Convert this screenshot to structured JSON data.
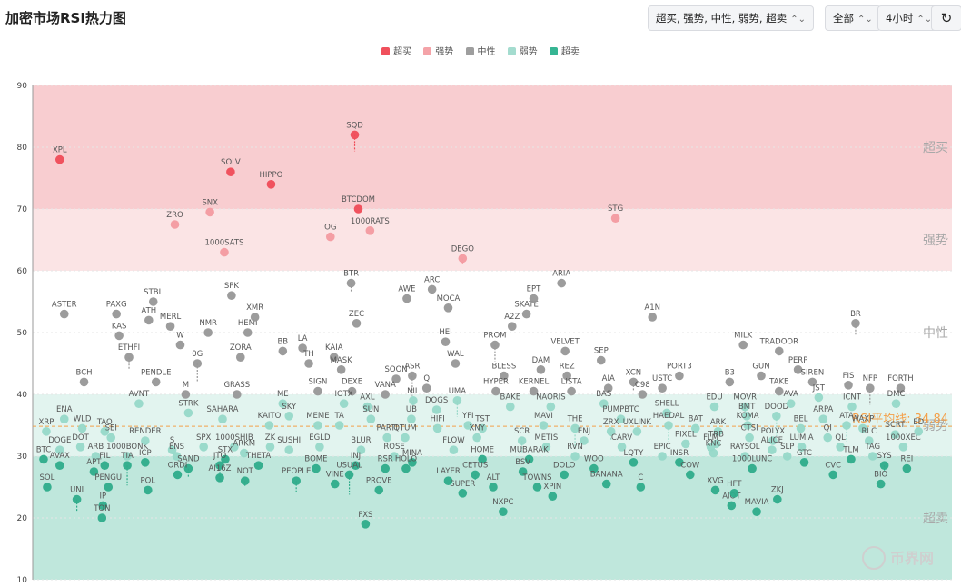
{
  "header": {
    "title": "加密市场RSI热力图",
    "filter_label": "超买, 强势, 中性, 弱势, 超卖",
    "scope_label": "全部",
    "interval_label": "4小时",
    "chevron_glyph": "⌃⌄",
    "refresh_glyph": "↻"
  },
  "legend": [
    {
      "label": "超买",
      "color": "#f0505c"
    },
    {
      "label": "强势",
      "color": "#f4a3a8"
    },
    {
      "label": "中性",
      "color": "#9e9e9e"
    },
    {
      "label": "弱势",
      "color": "#a4dccf"
    },
    {
      "label": "超卖",
      "color": "#36b593"
    }
  ],
  "chart_data": {
    "type": "scatter",
    "ylim": [
      10,
      90
    ],
    "yticks": [
      10,
      20,
      30,
      40,
      50,
      60,
      70,
      80,
      90
    ],
    "zones": [
      {
        "label": "超买",
        "from": 70,
        "to": 90,
        "color": "#f8cdd0"
      },
      {
        "label": "强势",
        "from": 60,
        "to": 70,
        "color": "#fbe4e5"
      },
      {
        "label": "中性",
        "from": 40,
        "to": 60,
        "color": "#ffffff"
      },
      {
        "label": "弱势",
        "from": 30,
        "to": 40,
        "color": "#e2f4ef"
      },
      {
        "label": "超卖",
        "from": 10,
        "to": 30,
        "color": "#bfe7dc"
      }
    ],
    "average": {
      "label": "RSI平均线: 34.84",
      "value": 34.84,
      "color": "#f4a04a"
    },
    "points": [
      {
        "n": "XPL",
        "x": 0.02,
        "y": 78
      },
      {
        "n": "SOLV",
        "x": 0.21,
        "y": 76
      },
      {
        "n": "HIPPO",
        "x": 0.255,
        "y": 74
      },
      {
        "n": "SQD",
        "x": 0.348,
        "y": 82
      },
      {
        "n": "BTCDOM",
        "x": 0.352,
        "y": 70
      },
      {
        "n": "1000RATS",
        "x": 0.365,
        "y": 66.5
      },
      {
        "n": "ZRO",
        "x": 0.148,
        "y": 67.5
      },
      {
        "n": "SNX",
        "x": 0.187,
        "y": 69.5
      },
      {
        "n": "1000SATS",
        "x": 0.203,
        "y": 63
      },
      {
        "n": "OG",
        "x": 0.321,
        "y": 65.5
      },
      {
        "n": "DEGO",
        "x": 0.468,
        "y": 62
      },
      {
        "n": "STG",
        "x": 0.638,
        "y": 68.5
      },
      {
        "n": "ASTER",
        "x": 0.025,
        "y": 53
      },
      {
        "n": "PAXG",
        "x": 0.083,
        "y": 53
      },
      {
        "n": "STBL",
        "x": 0.124,
        "y": 55
      },
      {
        "n": "ATH",
        "x": 0.119,
        "y": 52
      },
      {
        "n": "KAS",
        "x": 0.086,
        "y": 49.5
      },
      {
        "n": "ETHFI",
        "x": 0.097,
        "y": 46
      },
      {
        "n": "MERL",
        "x": 0.143,
        "y": 51
      },
      {
        "n": "NMR",
        "x": 0.185,
        "y": 50
      },
      {
        "n": "HEMI",
        "x": 0.229,
        "y": 50
      },
      {
        "n": "XMR",
        "x": 0.237,
        "y": 52.5
      },
      {
        "n": "SPK",
        "x": 0.211,
        "y": 56
      },
      {
        "n": "ZORA",
        "x": 0.221,
        "y": 46
      },
      {
        "n": "0G",
        "x": 0.173,
        "y": 45
      },
      {
        "n": "W",
        "x": 0.154,
        "y": 48
      },
      {
        "n": "BB",
        "x": 0.268,
        "y": 47
      },
      {
        "n": "LA",
        "x": 0.29,
        "y": 47.5
      },
      {
        "n": "TH",
        "x": 0.297,
        "y": 45
      },
      {
        "n": "KAIA",
        "x": 0.325,
        "y": 46
      },
      {
        "n": "MASK",
        "x": 0.333,
        "y": 44
      },
      {
        "n": "BTR",
        "x": 0.344,
        "y": 58
      },
      {
        "n": "ZEC",
        "x": 0.35,
        "y": 51.5
      },
      {
        "n": "AWE",
        "x": 0.406,
        "y": 55.5
      },
      {
        "n": "ARC",
        "x": 0.434,
        "y": 57
      },
      {
        "n": "MOCA",
        "x": 0.452,
        "y": 54
      },
      {
        "n": "HEI",
        "x": 0.449,
        "y": 48.5
      },
      {
        "n": "WAL",
        "x": 0.46,
        "y": 45
      },
      {
        "n": "PROM",
        "x": 0.504,
        "y": 48
      },
      {
        "n": "A2Z",
        "x": 0.523,
        "y": 51
      },
      {
        "n": "SKATE",
        "x": 0.539,
        "y": 53
      },
      {
        "n": "EPT",
        "x": 0.547,
        "y": 55.5
      },
      {
        "n": "ARIA",
        "x": 0.578,
        "y": 58
      },
      {
        "n": "VELVET",
        "x": 0.582,
        "y": 47
      },
      {
        "n": "DAM",
        "x": 0.555,
        "y": 44
      },
      {
        "n": "REZ",
        "x": 0.584,
        "y": 43
      },
      {
        "n": "SEP",
        "x": 0.622,
        "y": 45.5
      },
      {
        "n": "A1N",
        "x": 0.679,
        "y": 52.5
      },
      {
        "n": "PORT3",
        "x": 0.709,
        "y": 43
      },
      {
        "n": "MILK",
        "x": 0.78,
        "y": 48
      },
      {
        "n": "TRADOOR",
        "x": 0.82,
        "y": 47
      },
      {
        "n": "PERP",
        "x": 0.841,
        "y": 44
      },
      {
        "n": "BR",
        "x": 0.905,
        "y": 51.5
      },
      {
        "n": "BCH",
        "x": 0.047,
        "y": 42
      },
      {
        "n": "PENDLE",
        "x": 0.127,
        "y": 42
      },
      {
        "n": "GRASS",
        "x": 0.217,
        "y": 40
      },
      {
        "n": "SIGN",
        "x": 0.307,
        "y": 40.5
      },
      {
        "n": "DEXE",
        "x": 0.345,
        "y": 40.5
      },
      {
        "n": "SOON",
        "x": 0.394,
        "y": 42.5
      },
      {
        "n": "ASR",
        "x": 0.412,
        "y": 43
      },
      {
        "n": "Q",
        "x": 0.428,
        "y": 41
      },
      {
        "n": "BLESS",
        "x": 0.514,
        "y": 43
      },
      {
        "n": "HYPER",
        "x": 0.505,
        "y": 40.5
      },
      {
        "n": "KERNEL",
        "x": 0.547,
        "y": 40.5
      },
      {
        "n": "LISTA",
        "x": 0.589,
        "y": 40.5
      },
      {
        "n": "AIA",
        "x": 0.63,
        "y": 41
      },
      {
        "n": "XCN",
        "x": 0.658,
        "y": 42
      },
      {
        "n": "USTC",
        "x": 0.69,
        "y": 41
      },
      {
        "n": "B3",
        "x": 0.765,
        "y": 42
      },
      {
        "n": "GUN",
        "x": 0.8,
        "y": 43
      },
      {
        "n": "TAKE",
        "x": 0.82,
        "y": 40.5
      },
      {
        "n": "SIREN",
        "x": 0.857,
        "y": 42
      },
      {
        "n": "FIS",
        "x": 0.897,
        "y": 41.5
      },
      {
        "n": "NFP",
        "x": 0.921,
        "y": 41
      },
      {
        "n": "FORTH",
        "x": 0.955,
        "y": 41
      },
      {
        "n": "M",
        "x": 0.16,
        "y": 40
      },
      {
        "n": "ENA",
        "x": 0.025,
        "y": 36
      },
      {
        "n": "XRP",
        "x": 0.005,
        "y": 34
      },
      {
        "n": "WLD",
        "x": 0.045,
        "y": 34.5
      },
      {
        "n": "TAO",
        "x": 0.07,
        "y": 34
      },
      {
        "n": "DOGE",
        "x": 0.02,
        "y": 31
      },
      {
        "n": "DOT",
        "x": 0.043,
        "y": 31.5
      },
      {
        "n": "SEI",
        "x": 0.077,
        "y": 33
      },
      {
        "n": "ARB",
        "x": 0.06,
        "y": 30
      },
      {
        "n": "AVAX",
        "x": 0.02,
        "y": 28.5
      },
      {
        "n": "BTC",
        "x": 0.002,
        "y": 29.5
      },
      {
        "n": "SOL",
        "x": 0.006,
        "y": 25
      },
      {
        "n": "UNI",
        "x": 0.039,
        "y": 23
      },
      {
        "n": "FIL",
        "x": 0.07,
        "y": 28.5
      },
      {
        "n": "APT",
        "x": 0.058,
        "y": 27.5
      },
      {
        "n": "PENGU",
        "x": 0.074,
        "y": 25
      },
      {
        "n": "IP",
        "x": 0.068,
        "y": 22
      },
      {
        "n": "TON",
        "x": 0.067,
        "y": 20
      },
      {
        "n": "1000BONK",
        "x": 0.095,
        "y": 30
      },
      {
        "n": "TIA",
        "x": 0.095,
        "y": 28.5
      },
      {
        "n": "ICP",
        "x": 0.115,
        "y": 29
      },
      {
        "n": "POL",
        "x": 0.118,
        "y": 24.5
      },
      {
        "n": "RENDER",
        "x": 0.115,
        "y": 32.5
      },
      {
        "n": "AVNT",
        "x": 0.108,
        "y": 38.5
      },
      {
        "n": "S",
        "x": 0.145,
        "y": 31
      },
      {
        "n": "ENS",
        "x": 0.15,
        "y": 30
      },
      {
        "n": "SAND",
        "x": 0.163,
        "y": 28
      },
      {
        "n": "ORDI",
        "x": 0.151,
        "y": 27
      },
      {
        "n": "SPX",
        "x": 0.18,
        "y": 31.5
      },
      {
        "n": "STRK",
        "x": 0.163,
        "y": 37
      },
      {
        "n": "SAHARA",
        "x": 0.201,
        "y": 36
      },
      {
        "n": "1000SHIB",
        "x": 0.214,
        "y": 31.5
      },
      {
        "n": "STX",
        "x": 0.204,
        "y": 29.5
      },
      {
        "n": "JTO",
        "x": 0.198,
        "y": 28.5
      },
      {
        "n": "AI16Z",
        "x": 0.198,
        "y": 26.5
      },
      {
        "n": "KAITO",
        "x": 0.253,
        "y": 35
      },
      {
        "n": "ME",
        "x": 0.268,
        "y": 38.5
      },
      {
        "n": "ZK",
        "x": 0.254,
        "y": 31.5
      },
      {
        "n": "ARKM",
        "x": 0.225,
        "y": 30.5
      },
      {
        "n": "THETA",
        "x": 0.241,
        "y": 28.5
      },
      {
        "n": "NOT",
        "x": 0.226,
        "y": 26
      },
      {
        "n": "SKY",
        "x": 0.275,
        "y": 36.5
      },
      {
        "n": "SUSHI",
        "x": 0.275,
        "y": 31
      },
      {
        "n": "MEME",
        "x": 0.307,
        "y": 35
      },
      {
        "n": "EGLD",
        "x": 0.309,
        "y": 31.5
      },
      {
        "n": "TA",
        "x": 0.331,
        "y": 35
      },
      {
        "n": "BOME",
        "x": 0.305,
        "y": 28
      },
      {
        "n": "PEOPLE",
        "x": 0.283,
        "y": 26
      },
      {
        "n": "VINE",
        "x": 0.326,
        "y": 25.5
      },
      {
        "n": "IOTX",
        "x": 0.336,
        "y": 38.5
      },
      {
        "n": "AXL",
        "x": 0.362,
        "y": 38
      },
      {
        "n": "SUN",
        "x": 0.366,
        "y": 36
      },
      {
        "n": "BLUR",
        "x": 0.355,
        "y": 31
      },
      {
        "n": "INJ",
        "x": 0.349,
        "y": 28.5
      },
      {
        "n": "USUAL",
        "x": 0.342,
        "y": 27
      },
      {
        "n": "PARTI",
        "x": 0.384,
        "y": 33
      },
      {
        "n": "ROSE",
        "x": 0.392,
        "y": 30
      },
      {
        "n": "RSR",
        "x": 0.382,
        "y": 28
      },
      {
        "n": "PROVE",
        "x": 0.375,
        "y": 24.5
      },
      {
        "n": "FXS",
        "x": 0.36,
        "y": 19
      },
      {
        "n": "VANA",
        "x": 0.382,
        "y": 40
      },
      {
        "n": "NIL",
        "x": 0.413,
        "y": 39
      },
      {
        "n": "UB",
        "x": 0.411,
        "y": 36
      },
      {
        "n": "QTUM",
        "x": 0.404,
        "y": 33
      },
      {
        "n": "MINA",
        "x": 0.412,
        "y": 29
      },
      {
        "n": "HOLO",
        "x": 0.405,
        "y": 28
      },
      {
        "n": "DOGS",
        "x": 0.439,
        "y": 37.5
      },
      {
        "n": "HIFI",
        "x": 0.44,
        "y": 34.5
      },
      {
        "n": "UMA",
        "x": 0.462,
        "y": 39
      },
      {
        "n": "YFI",
        "x": 0.474,
        "y": 35
      },
      {
        "n": "TST",
        "x": 0.49,
        "y": 34.5
      },
      {
        "n": "XNY",
        "x": 0.484,
        "y": 33
      },
      {
        "n": "FLOW",
        "x": 0.458,
        "y": 31
      },
      {
        "n": "HOME",
        "x": 0.49,
        "y": 29.5
      },
      {
        "n": "LAYER",
        "x": 0.452,
        "y": 26
      },
      {
        "n": "CETUS",
        "x": 0.482,
        "y": 27
      },
      {
        "n": "SUPER",
        "x": 0.468,
        "y": 24
      },
      {
        "n": "ALT",
        "x": 0.502,
        "y": 25
      },
      {
        "n": "NXPC",
        "x": 0.513,
        "y": 21
      },
      {
        "n": "BAKE",
        "x": 0.521,
        "y": 38
      },
      {
        "n": "NAORIS",
        "x": 0.566,
        "y": 38
      },
      {
        "n": "MAVI",
        "x": 0.558,
        "y": 35
      },
      {
        "n": "SCR",
        "x": 0.534,
        "y": 32.5
      },
      {
        "n": "METIS",
        "x": 0.561,
        "y": 31.5
      },
      {
        "n": "MUBARAK",
        "x": 0.542,
        "y": 29.5
      },
      {
        "n": "BSV",
        "x": 0.535,
        "y": 27.5
      },
      {
        "n": "TOWNS",
        "x": 0.551,
        "y": 25
      },
      {
        "n": "XPIN",
        "x": 0.568,
        "y": 23.5
      },
      {
        "n": "DOLO",
        "x": 0.581,
        "y": 27
      },
      {
        "n": "THE",
        "x": 0.593,
        "y": 34.5
      },
      {
        "n": "ENJ",
        "x": 0.603,
        "y": 32.5
      },
      {
        "n": "RVN",
        "x": 0.593,
        "y": 30
      },
      {
        "n": "WOO",
        "x": 0.614,
        "y": 28
      },
      {
        "n": "BANANA",
        "x": 0.628,
        "y": 25.5
      },
      {
        "n": "BAS",
        "x": 0.625,
        "y": 38.5
      },
      {
        "n": "PUMPBTC",
        "x": 0.644,
        "y": 36
      },
      {
        "n": "ZRX",
        "x": 0.633,
        "y": 34
      },
      {
        "n": "UXLINK",
        "x": 0.662,
        "y": 34
      },
      {
        "n": "CARV",
        "x": 0.645,
        "y": 31.5
      },
      {
        "n": "LQTY",
        "x": 0.658,
        "y": 29
      },
      {
        "n": "C",
        "x": 0.666,
        "y": 25
      },
      {
        "n": "C98",
        "x": 0.668,
        "y": 40
      },
      {
        "n": "SHELL",
        "x": 0.695,
        "y": 37
      },
      {
        "n": "HAEDAL",
        "x": 0.697,
        "y": 35
      },
      {
        "n": "BAT",
        "x": 0.727,
        "y": 34.5
      },
      {
        "n": "EPIC",
        "x": 0.69,
        "y": 30
      },
      {
        "n": "PIXEL",
        "x": 0.716,
        "y": 32
      },
      {
        "n": "INSR",
        "x": 0.709,
        "y": 29
      },
      {
        "n": "COW",
        "x": 0.721,
        "y": 27
      },
      {
        "n": "EDU",
        "x": 0.748,
        "y": 38
      },
      {
        "n": "ARK",
        "x": 0.752,
        "y": 34
      },
      {
        "n": "TRB",
        "x": 0.75,
        "y": 32
      },
      {
        "n": "FLM",
        "x": 0.744,
        "y": 31.5
      },
      {
        "n": "KNC",
        "x": 0.747,
        "y": 30.5
      },
      {
        "n": "XVG",
        "x": 0.749,
        "y": 24.5
      },
      {
        "n": "AIOT",
        "x": 0.767,
        "y": 22
      },
      {
        "n": "HFT",
        "x": 0.77,
        "y": 24
      },
      {
        "n": "MOVR",
        "x": 0.782,
        "y": 38
      },
      {
        "n": "BMT",
        "x": 0.784,
        "y": 36.5
      },
      {
        "n": "KOMA",
        "x": 0.785,
        "y": 35
      },
      {
        "n": "CTSI",
        "x": 0.787,
        "y": 33
      },
      {
        "n": "RAYSOL",
        "x": 0.782,
        "y": 30
      },
      {
        "n": "1000LUNC",
        "x": 0.79,
        "y": 28
      },
      {
        "n": "MAVIA",
        "x": 0.795,
        "y": 21
      },
      {
        "n": "DOOD",
        "x": 0.817,
        "y": 36.5
      },
      {
        "n": "POLYX",
        "x": 0.813,
        "y": 32.5
      },
      {
        "n": "ALICE",
        "x": 0.812,
        "y": 31
      },
      {
        "n": "ZKJ",
        "x": 0.818,
        "y": 23
      },
      {
        "n": "AVA",
        "x": 0.833,
        "y": 38.5
      },
      {
        "n": "BEL",
        "x": 0.844,
        "y": 34.5
      },
      {
        "n": "SLP",
        "x": 0.829,
        "y": 30
      },
      {
        "n": "LUMIA",
        "x": 0.845,
        "y": 31.5
      },
      {
        "n": "GTC",
        "x": 0.848,
        "y": 29
      },
      {
        "n": "JST",
        "x": 0.864,
        "y": 39.5
      },
      {
        "n": "ARPA",
        "x": 0.869,
        "y": 36
      },
      {
        "n": "QI",
        "x": 0.874,
        "y": 33
      },
      {
        "n": "CVC",
        "x": 0.88,
        "y": 27
      },
      {
        "n": "ICNT",
        "x": 0.901,
        "y": 38
      },
      {
        "n": "ATA",
        "x": 0.895,
        "y": 35
      },
      {
        "n": "WAXP",
        "x": 0.913,
        "y": 34.5
      },
      {
        "n": "QL",
        "x": 0.888,
        "y": 31.5
      },
      {
        "n": "TLM",
        "x": 0.9,
        "y": 29.5
      },
      {
        "n": "RLC",
        "x": 0.92,
        "y": 32.5
      },
      {
        "n": "TAG",
        "x": 0.924,
        "y": 30
      },
      {
        "n": "BIO",
        "x": 0.933,
        "y": 25.5
      },
      {
        "n": "SYS",
        "x": 0.937,
        "y": 28.5
      },
      {
        "n": "DMC",
        "x": 0.95,
        "y": 38.5
      },
      {
        "n": "SCRT",
        "x": 0.949,
        "y": 33.5
      },
      {
        "n": "1000XEC",
        "x": 0.958,
        "y": 31.5
      },
      {
        "n": "REI",
        "x": 0.962,
        "y": 28
      },
      {
        "n": "ED",
        "x": 0.975,
        "y": 34
      }
    ]
  },
  "watermark": "币界网"
}
